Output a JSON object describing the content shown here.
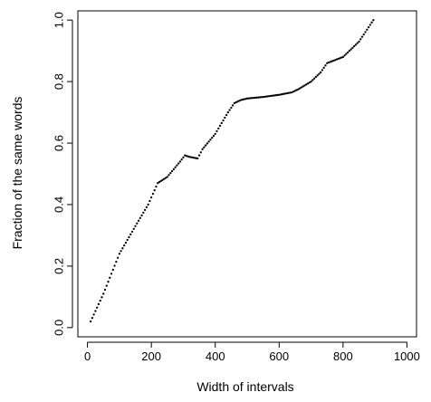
{
  "chart_data": {
    "type": "scatter",
    "title": "",
    "xlabel": "Width of intervals",
    "ylabel": "Fraction of the same words",
    "xlim": [
      -30,
      1030
    ],
    "ylim": [
      -0.03,
      1.03
    ],
    "xticks": [
      0,
      200,
      400,
      600,
      800,
      1000
    ],
    "yticks": [
      0.0,
      0.2,
      0.4,
      0.6,
      0.8,
      1.0
    ],
    "xtick_labels": [
      "0",
      "200",
      "400",
      "600",
      "800",
      "1000"
    ],
    "ytick_labels": [
      "0.0",
      "0.2",
      "0.4",
      "0.6",
      "0.8",
      "1.0"
    ],
    "grid": false,
    "marker_color": "#000000",
    "x_start": 10,
    "x_step": 5,
    "curve_knots": [
      [
        10,
        0.02
      ],
      [
        50,
        0.11
      ],
      [
        100,
        0.24
      ],
      [
        150,
        0.33
      ],
      [
        190,
        0.4
      ],
      [
        220,
        0.47
      ],
      [
        250,
        0.49
      ],
      [
        290,
        0.54
      ],
      [
        305,
        0.56
      ],
      [
        320,
        0.555
      ],
      [
        345,
        0.55
      ],
      [
        360,
        0.58
      ],
      [
        400,
        0.63
      ],
      [
        440,
        0.7
      ],
      [
        460,
        0.73
      ],
      [
        480,
        0.74
      ],
      [
        500,
        0.745
      ],
      [
        550,
        0.75
      ],
      [
        600,
        0.757
      ],
      [
        640,
        0.765
      ],
      [
        660,
        0.775
      ],
      [
        700,
        0.8
      ],
      [
        730,
        0.83
      ],
      [
        750,
        0.86
      ],
      [
        800,
        0.88
      ],
      [
        850,
        0.93
      ],
      [
        895,
        1.0
      ]
    ]
  }
}
